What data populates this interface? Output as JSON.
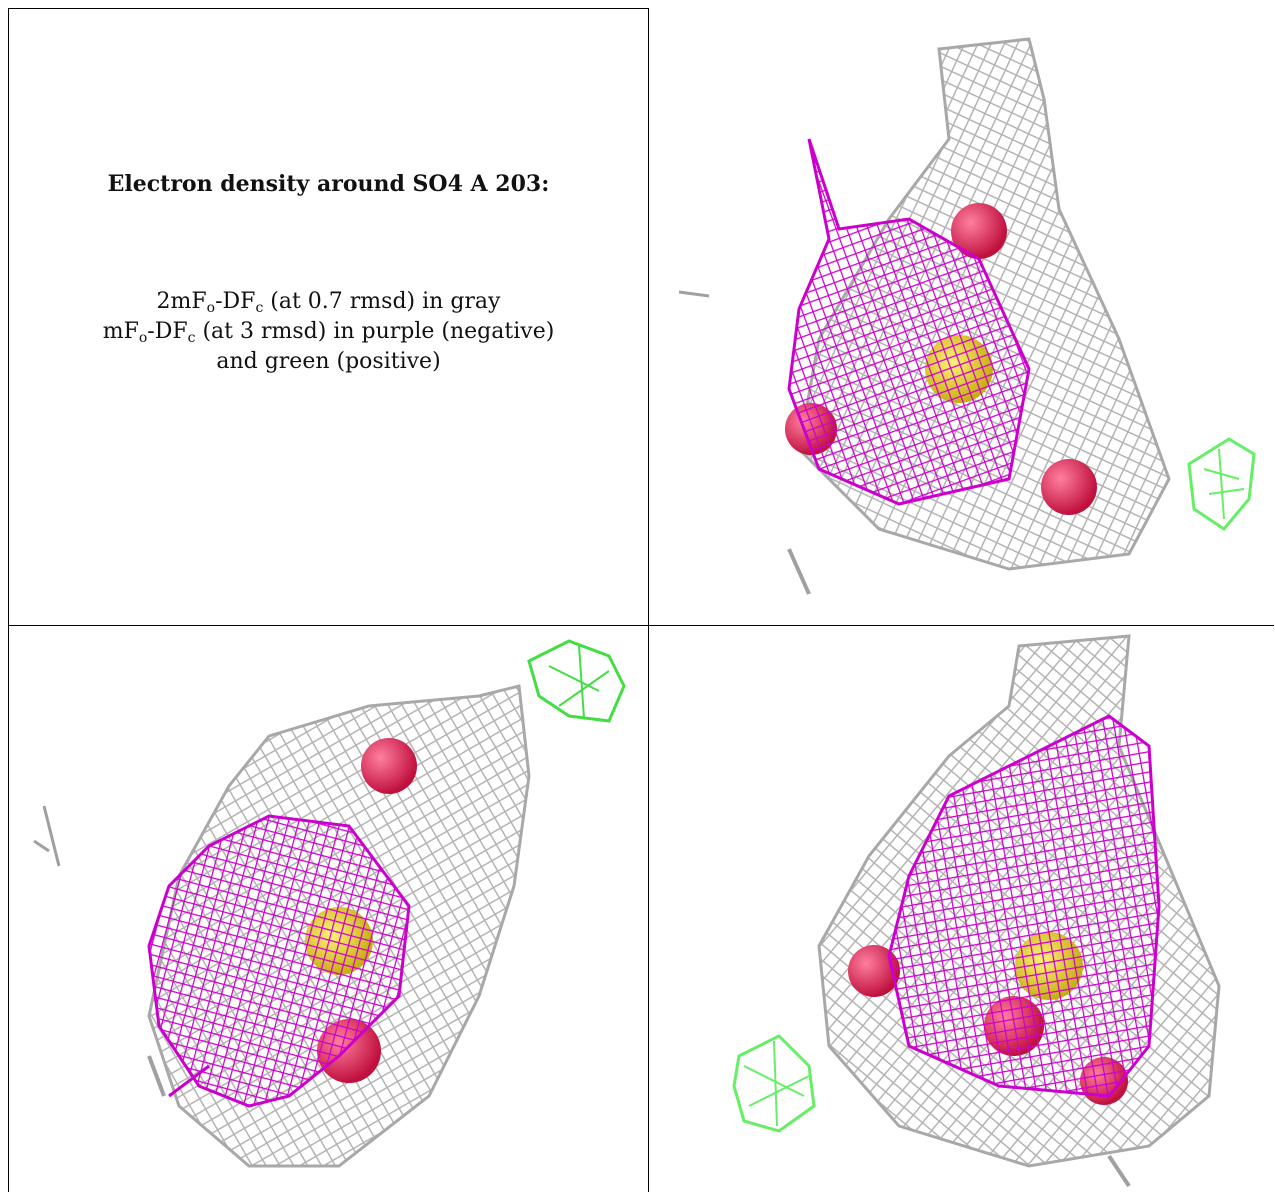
{
  "caption": {
    "title": "Electron density around SO4 A 203:",
    "line1": {
      "prefix": "2mF",
      "sub1": "o",
      "mid": "-DF",
      "sub2": "c",
      "suffix": " (at 0.7 rmsd) in gray"
    },
    "line2": {
      "prefix": "mF",
      "sub1": "o",
      "mid": "-DF",
      "sub2": "c",
      "suffix": " (at 3 rmsd) in purple (negative)"
    },
    "line3": "and green (positive)"
  },
  "colors": {
    "gray_mesh": "#b4b4b4",
    "purple_mesh": "#cc00cc",
    "green_mesh": "#66ee66",
    "oxygen_sphere": "#e8245a",
    "sulfur": "#e6d22a"
  },
  "panels": [
    {
      "view": "top-right",
      "icons": [
        "gray-mesh",
        "purple-mesh",
        "green-mesh",
        "oxygen-sphere",
        "sulfur-atom"
      ]
    },
    {
      "view": "bottom-left",
      "icons": [
        "gray-mesh",
        "purple-mesh",
        "green-mesh",
        "oxygen-sphere",
        "sulfur-atom"
      ]
    },
    {
      "view": "bottom-right",
      "icons": [
        "gray-mesh",
        "purple-mesh",
        "green-mesh",
        "oxygen-sphere",
        "sulfur-atom"
      ]
    }
  ]
}
